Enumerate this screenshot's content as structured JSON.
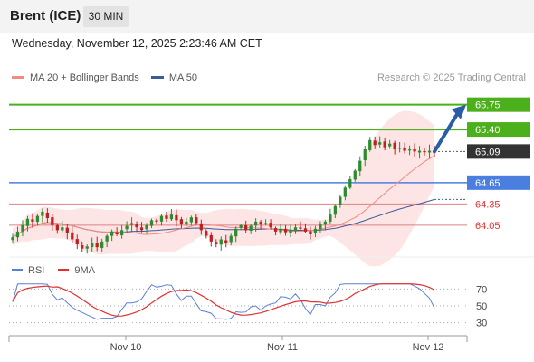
{
  "header": {
    "title": "Brent (ICE)",
    "timeframe": "30 MIN"
  },
  "subheader": {
    "datetime": "Wednesday, November 12, 2025 2:23:46 AM CET"
  },
  "price_panel": {
    "legend": [
      {
        "label": "MA 20 + Bollinger Bands",
        "color": "#f28b82"
      },
      {
        "label": "MA 50",
        "color": "#3b5a9a"
      }
    ],
    "credit": "Research © 2025 Trading Central"
  },
  "rsi_panel": {
    "legend": [
      {
        "label": "RSI",
        "color": "#5b7fd6"
      },
      {
        "label": "9MA",
        "color": "#e03030"
      }
    ]
  },
  "colors": {
    "green_level": "#4caf1c",
    "blue_level": "#4a7fe0",
    "red_level": "#e08080",
    "current": "#333333",
    "candle_up": "#2e8b2e",
    "candle_down": "#c02020",
    "arrow": "#2a5ca8",
    "band_fill": "#fde0e0"
  },
  "chart_data": [
    {
      "type": "candlestick",
      "y_range": [
        63.55,
        65.95
      ],
      "x_labels": [
        "Nov 10",
        "Nov 11",
        "Nov 12"
      ],
      "levels": [
        {
          "value": 65.75,
          "label": "65.75",
          "kind": "resistance",
          "color": "#4caf1c"
        },
        {
          "value": 65.4,
          "label": "65.40",
          "kind": "resistance",
          "color": "#4caf1c"
        },
        {
          "value": 65.09,
          "label": "65.09",
          "kind": "current",
          "color": "#333333"
        },
        {
          "value": 64.65,
          "label": "64.65",
          "kind": "pivot",
          "color": "#4a7fe0"
        },
        {
          "value": 64.35,
          "label": "64.35",
          "kind": "support",
          "color": "#e08080"
        },
        {
          "value": 64.05,
          "label": "64.05",
          "kind": "support",
          "color": "#e08080"
        }
      ],
      "forecast": {
        "from": 65.09,
        "to": 65.75
      },
      "close": [
        63.88,
        63.96,
        64.05,
        64.14,
        64.1,
        64.18,
        64.24,
        64.15,
        64.05,
        63.98,
        64.02,
        63.94,
        63.85,
        63.78,
        63.72,
        63.75,
        63.8,
        63.74,
        63.82,
        63.9,
        63.96,
        63.92,
        63.98,
        64.04,
        64.08,
        64.02,
        63.98,
        64.05,
        64.12,
        64.1,
        64.18,
        64.14,
        64.2,
        64.12,
        64.06,
        64.1,
        64.16,
        64.08,
        63.98,
        63.9,
        63.82,
        63.78,
        63.85,
        63.8,
        63.9,
        64.0,
        64.05,
        63.98,
        64.04,
        64.1,
        64.06,
        64.08,
        64.02,
        63.96,
        64.0,
        63.95,
        63.98,
        64.02,
        64.0,
        63.96,
        63.92,
        64.0,
        64.06,
        64.1,
        64.2,
        64.32,
        64.45,
        64.58,
        64.7,
        64.82,
        64.96,
        65.12,
        65.25,
        65.18,
        65.22,
        65.15,
        65.2,
        65.12,
        65.14,
        65.1,
        65.12,
        65.09,
        65.1,
        65.08,
        65.1,
        65.09
      ]
    },
    {
      "type": "line",
      "name": "RSI",
      "y_range": [
        20,
        80
      ],
      "y_ticks": [
        70,
        50,
        30
      ],
      "series_colors": [
        "#5b7fd6",
        "#e03030"
      ]
    }
  ]
}
